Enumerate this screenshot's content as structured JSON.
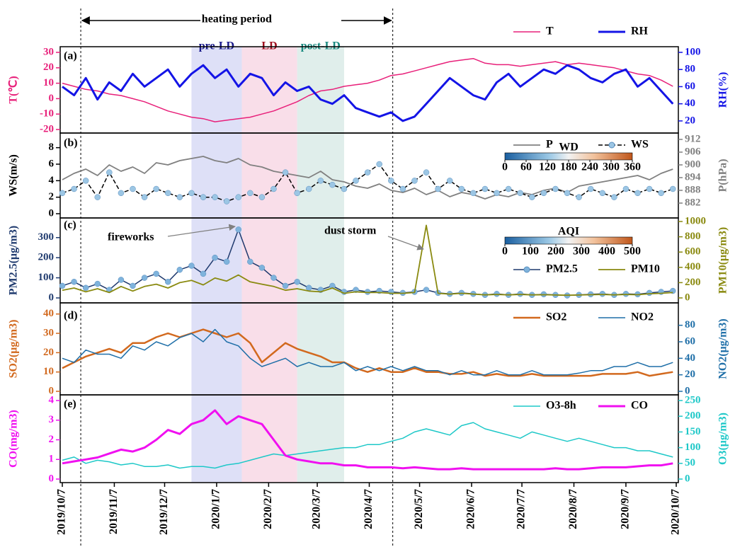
{
  "chart_data": {
    "type": "line",
    "x": [
      "2019/10/7",
      "2019/10/14",
      "2019/10/21",
      "2019/10/28",
      "2019/11/4",
      "2019/11/11",
      "2019/11/18",
      "2019/11/25",
      "2019/12/2",
      "2019/12/9",
      "2019/12/16",
      "2019/12/23",
      "2019/12/30",
      "2020/1/6",
      "2020/1/13",
      "2020/1/20",
      "2020/1/27",
      "2020/2/3",
      "2020/2/10",
      "2020/2/17",
      "2020/2/24",
      "2020/3/2",
      "2020/3/9",
      "2020/3/16",
      "2020/3/23",
      "2020/3/30",
      "2020/4/6",
      "2020/4/13",
      "2020/4/20",
      "2020/4/27",
      "2020/5/4",
      "2020/5/11",
      "2020/5/18",
      "2020/5/25",
      "2020/6/1",
      "2020/6/8",
      "2020/6/15",
      "2020/6/22",
      "2020/6/29",
      "2020/7/6",
      "2020/7/13",
      "2020/7/20",
      "2020/7/27",
      "2020/8/3",
      "2020/8/10",
      "2020/8/17",
      "2020/8/24",
      "2020/8/31",
      "2020/9/7",
      "2020/9/14",
      "2020/9/21",
      "2020/9/28",
      "2020/10/5"
    ],
    "xlim": [
      "2019/10/7",
      "2020/10/7"
    ],
    "xticks": [
      "2019/10/7",
      "2019/11/7",
      "2019/12/7",
      "2020/1/7",
      "2020/2/7",
      "2020/3/7",
      "2020/4/7",
      "2020/5/7",
      "2020/6/7",
      "2020/7/7",
      "2020/8/7",
      "2020/9/7",
      "2020/10/7"
    ],
    "heating": {
      "label": "heating period",
      "start": "2019/10/18",
      "end": "2020/4/21"
    },
    "regions": [
      {
        "label": "pre-LD",
        "start": "2019/12/23",
        "end": "2020/1/22",
        "color": "#d6d8f5",
        "label_color": "#1a1a8c"
      },
      {
        "label": "LD",
        "start": "2020/1/22",
        "end": "2020/2/24",
        "color": "#f8d6e4",
        "label_color": "#a01020"
      },
      {
        "label": "post-LD",
        "start": "2020/2/24",
        "end": "2020/3/23",
        "color": "#d8eae6",
        "label_color": "#1a8a80"
      }
    ],
    "annotations": [
      "fireworks",
      "dust storm"
    ],
    "panels": [
      {
        "label": "(a)",
        "ylabel": "T(℃)",
        "y2label": "RH(%)",
        "ylim": [
          -20,
          30
        ],
        "yticks": [
          -20,
          -10,
          0,
          10,
          20,
          30
        ],
        "y2lim": [
          10,
          100
        ],
        "y2ticks": [
          20,
          40,
          60,
          80,
          100
        ],
        "legend": "upper right",
        "series": [
          {
            "name": "T",
            "color": "#e8207a",
            "width": 1.5,
            "values": [
              10,
              8,
              6,
              5,
              3,
              2,
              0,
              -2,
              -5,
              -8,
              -10,
              -12,
              -13,
              -15,
              -14,
              -13,
              -12,
              -10,
              -8,
              -5,
              -2,
              2,
              5,
              6,
              8,
              9,
              10,
              12,
              15,
              16,
              18,
              20,
              22,
              24,
              25,
              26,
              23,
              22,
              22,
              21,
              22,
              23,
              24,
              22,
              23,
              22,
              21,
              20,
              18,
              16,
              15,
              12,
              8
            ]
          },
          {
            "name": "RH",
            "color": "#1414e6",
            "width": 3,
            "axis": "y2",
            "values": [
              60,
              50,
              70,
              45,
              65,
              55,
              75,
              60,
              70,
              80,
              60,
              75,
              85,
              70,
              80,
              60,
              75,
              70,
              50,
              65,
              55,
              60,
              45,
              40,
              50,
              35,
              30,
              25,
              30,
              20,
              25,
              40,
              55,
              70,
              60,
              50,
              45,
              65,
              75,
              60,
              70,
              80,
              75,
              85,
              80,
              70,
              65,
              75,
              80,
              60,
              70,
              55,
              40
            ]
          }
        ]
      },
      {
        "label": "(b)",
        "ylabel": "WS(m/s)",
        "y2label": "P(hPa)",
        "ylim": [
          0,
          9
        ],
        "yticks": [
          0,
          2,
          4,
          6,
          8
        ],
        "y2lim": [
          877,
          912
        ],
        "y2ticks": [
          882,
          888,
          894,
          900,
          906,
          912
        ],
        "legend": "upper right",
        "colorbar": {
          "title": "WD",
          "ticks": [
            0,
            60,
            120,
            180,
            240,
            300,
            360
          ]
        },
        "series": [
          {
            "name": "P",
            "color": "#808080",
            "width": 1.8,
            "axis": "y2",
            "values": [
              893,
              896,
              898,
              895,
              900,
              897,
              899,
              896,
              901,
              900,
              902,
              903,
              904,
              902,
              901,
              903,
              900,
              899,
              897,
              896,
              895,
              894,
              897,
              893,
              892,
              890,
              889,
              891,
              888,
              887,
              889,
              886,
              888,
              885,
              887,
              886,
              884,
              886,
              885,
              887,
              886,
              888,
              889,
              887,
              890,
              891,
              892,
              893,
              894,
              895,
              893,
              896,
              898
            ]
          },
          {
            "name": "WS",
            "color": "#000000",
            "width": 1.5,
            "dash": true,
            "markers": true,
            "marker_color": "#9cc6e4",
            "values": [
              2.5,
              3,
              4,
              2,
              5,
              2.5,
              3,
              2,
              3,
              2.5,
              2,
              2.5,
              2,
              2,
              1.5,
              2,
              2.5,
              2,
              3,
              5,
              2.5,
              3,
              4,
              3.5,
              3,
              4,
              5,
              6,
              4,
              3,
              4,
              5,
              3,
              4,
              3,
              2.5,
              3,
              2.5,
              3,
              2.5,
              2,
              2.5,
              3,
              2.5,
              2,
              3,
              2.5,
              2,
              3,
              2.5,
              3,
              2.5,
              3
            ]
          }
        ]
      },
      {
        "label": "(c)",
        "ylabel": "PM2.5(μg/m3)",
        "y2label": "PM10(μg/m3)",
        "ylim": [
          0,
          380
        ],
        "yticks": [
          0,
          100,
          200,
          300
        ],
        "y2lim": [
          0,
          1000
        ],
        "y2ticks": [
          0,
          200,
          400,
          600,
          800,
          1000
        ],
        "legend": "upper right",
        "colorbar": {
          "title": "AQI",
          "ticks": [
            0,
            100,
            200,
            300,
            400,
            500
          ]
        },
        "series": [
          {
            "name": "PM2.5",
            "color": "#1f3a6e",
            "width": 1.5,
            "markers": true,
            "marker_color": "#7fb3dc",
            "values": [
              60,
              80,
              50,
              70,
              40,
              90,
              60,
              100,
              120,
              80,
              140,
              160,
              120,
              200,
              180,
              340,
              180,
              150,
              100,
              60,
              80,
              50,
              40,
              60,
              30,
              40,
              30,
              35,
              30,
              25,
              30,
              40,
              25,
              20,
              25,
              20,
              15,
              20,
              15,
              20,
              15,
              18,
              15,
              12,
              15,
              18,
              20,
              15,
              20,
              18,
              25,
              30,
              35
            ]
          },
          {
            "name": "PM10",
            "color": "#8a8a10",
            "width": 1.8,
            "axis": "y2",
            "values": [
              100,
              130,
              80,
              120,
              70,
              150,
              90,
              150,
              180,
              130,
              200,
              230,
              170,
              260,
              220,
              300,
              210,
              180,
              150,
              100,
              120,
              90,
              80,
              130,
              60,
              80,
              70,
              70,
              60,
              60,
              70,
              950,
              60,
              50,
              60,
              50,
              40,
              45,
              40,
              45,
              40,
              42,
              38,
              35,
              38,
              42,
              45,
              40,
              45,
              42,
              55,
              60,
              70
            ]
          }
        ]
      },
      {
        "label": "(d)",
        "ylabel": "SO2(μg/m3)",
        "y2label": "NO2(μg/m3)",
        "ylim": [
          0,
          41
        ],
        "yticks": [
          0,
          10,
          20,
          30,
          40
        ],
        "y2lim": [
          0,
          96
        ],
        "y2ticks": [
          0,
          20,
          40,
          60,
          80
        ],
        "legend": "upper right",
        "series": [
          {
            "name": "SO2",
            "color": "#d2691e",
            "width": 2.5,
            "values": [
              12,
              15,
              18,
              20,
              22,
              20,
              25,
              25,
              28,
              30,
              28,
              30,
              32,
              30,
              28,
              30,
              25,
              15,
              20,
              25,
              22,
              20,
              18,
              15,
              15,
              12,
              10,
              12,
              10,
              10,
              12,
              10,
              10,
              9,
              9,
              10,
              8,
              9,
              8,
              8,
              9,
              8,
              8,
              8,
              8,
              8,
              9,
              9,
              9,
              10,
              8,
              9,
              10
            ]
          },
          {
            "name": "NO2",
            "color": "#1f6fa8",
            "width": 1.5,
            "axis": "y2",
            "values": [
              40,
              35,
              50,
              45,
              45,
              40,
              55,
              50,
              60,
              55,
              65,
              70,
              60,
              75,
              60,
              55,
              40,
              30,
              35,
              40,
              30,
              35,
              30,
              30,
              35,
              25,
              30,
              25,
              30,
              25,
              30,
              25,
              25,
              20,
              25,
              20,
              20,
              25,
              20,
              20,
              25,
              20,
              20,
              20,
              22,
              25,
              25,
              30,
              30,
              35,
              30,
              30,
              35
            ]
          }
        ]
      },
      {
        "label": "(e)",
        "ylabel": "CO(mg/m3)",
        "y2label": "O3(μg/m3)",
        "ylim": [
          0,
          4
        ],
        "yticks": [
          0,
          1,
          2,
          3,
          4
        ],
        "y2lim": [
          0,
          250
        ],
        "y2ticks": [
          0,
          50,
          100,
          150,
          200,
          250
        ],
        "legend": "upper right",
        "series": [
          {
            "name": "O3-8h",
            "color": "#1ec8c8",
            "width": 1.5,
            "axis": "y2",
            "values": [
              60,
              70,
              50,
              60,
              55,
              45,
              50,
              40,
              40,
              45,
              35,
              40,
              40,
              35,
              45,
              50,
              60,
              70,
              80,
              75,
              80,
              85,
              90,
              95,
              100,
              100,
              110,
              110,
              120,
              130,
              150,
              160,
              150,
              140,
              170,
              180,
              160,
              150,
              140,
              130,
              150,
              140,
              130,
              120,
              130,
              120,
              110,
              100,
              100,
              90,
              90,
              80,
              70
            ]
          },
          {
            "name": "CO",
            "color": "#f010f0",
            "width": 3,
            "values": [
              0.8,
              0.9,
              1,
              1.1,
              1.3,
              1.5,
              1.4,
              1.6,
              2,
              2.5,
              2.3,
              2.8,
              3,
              3.5,
              2.8,
              3.2,
              3,
              2.8,
              2,
              1.2,
              1,
              0.9,
              0.8,
              0.8,
              0.7,
              0.7,
              0.6,
              0.6,
              0.6,
              0.55,
              0.6,
              0.55,
              0.5,
              0.5,
              0.55,
              0.5,
              0.5,
              0.5,
              0.5,
              0.5,
              0.5,
              0.5,
              0.55,
              0.5,
              0.5,
              0.55,
              0.6,
              0.6,
              0.6,
              0.65,
              0.7,
              0.7,
              0.8
            ]
          }
        ]
      }
    ]
  }
}
